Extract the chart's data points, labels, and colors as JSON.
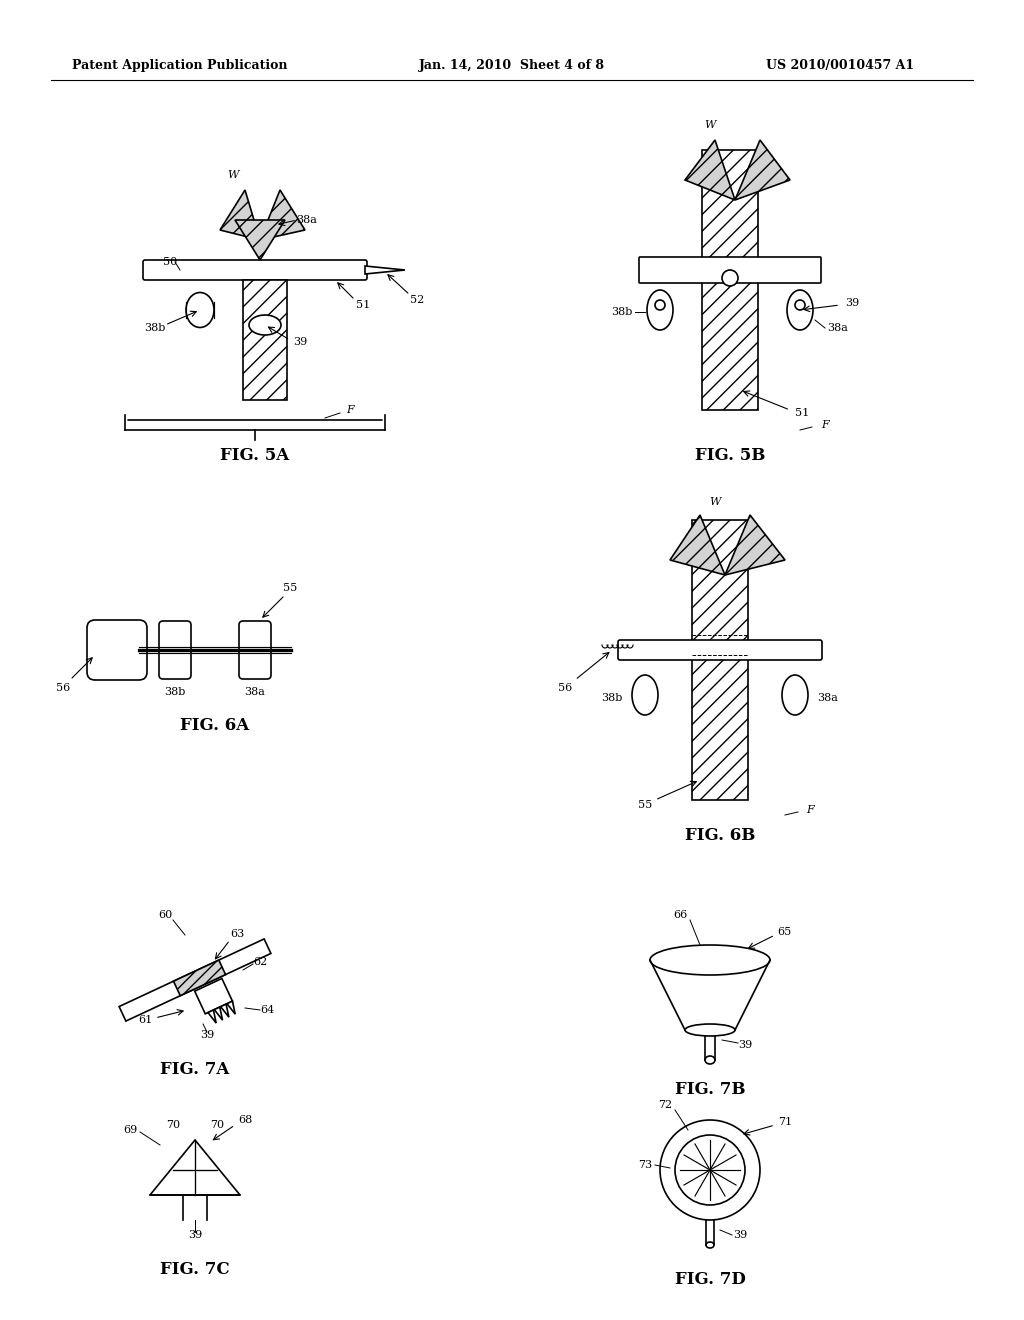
{
  "header_left": "Patent Application Publication",
  "header_mid": "Jan. 14, 2010  Sheet 4 of 8",
  "header_right": "US 2010/0010457 A1",
  "fig5a_label": "FIG. 5A",
  "fig5b_label": "FIG. 5B",
  "fig6a_label": "FIG. 6A",
  "fig6b_label": "FIG. 6B",
  "fig7a_label": "FIG. 7A",
  "fig7b_label": "FIG. 7B",
  "fig7c_label": "FIG. 7C",
  "fig7d_label": "FIG. 7D",
  "bg_color": "#ffffff",
  "line_color": "#000000",
  "hatch_color": "#000000"
}
